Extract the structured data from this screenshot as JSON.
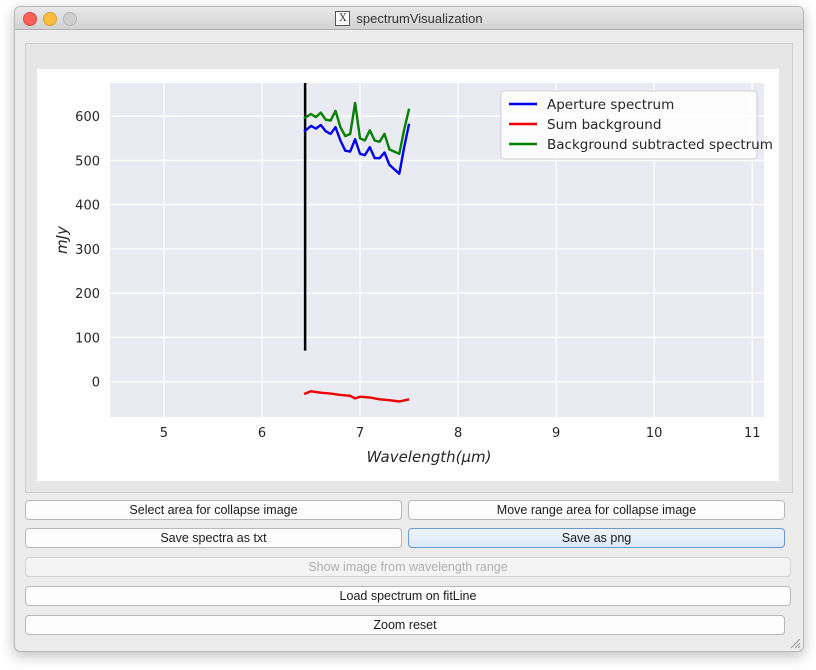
{
  "window": {
    "title": "spectrumVisualization"
  },
  "buttons": {
    "select_area": "Select area for collapse image",
    "move_range": "Move range area for collapse image",
    "save_txt": "Save spectra as txt",
    "save_png": "Save as png",
    "show_image": "Show image from wavelength range",
    "load_spectrum": "Load spectrum on fitLine",
    "zoom_reset": "Zoom reset"
  },
  "chart_data": {
    "type": "line",
    "xlabel": "Wavelength(μm)",
    "ylabel": "mJy",
    "xlim": [
      4.45,
      11.12
    ],
    "ylim": [
      -80,
      675
    ],
    "xticks": [
      5,
      6,
      7,
      8,
      9,
      10,
      11
    ],
    "yticks": [
      0,
      100,
      200,
      300,
      400,
      500,
      600
    ],
    "grid": true,
    "legend_position": "top-right",
    "vline": {
      "x": 6.44,
      "y_range": [
        70,
        675
      ],
      "color": "#000000"
    },
    "series": [
      {
        "name": "Aperture spectrum",
        "color": "#0000ee",
        "x": [
          6.43,
          6.5,
          6.55,
          6.6,
          6.65,
          6.7,
          6.75,
          6.8,
          6.85,
          6.9,
          6.95,
          7.0,
          7.05,
          7.1,
          7.15,
          7.2,
          7.25,
          7.3,
          7.35,
          7.4,
          7.45,
          7.5
        ],
        "y": [
          565,
          578,
          572,
          580,
          566,
          560,
          575,
          545,
          522,
          520,
          548,
          515,
          512,
          530,
          505,
          505,
          518,
          490,
          480,
          470,
          530,
          583
        ]
      },
      {
        "name": "Sum background",
        "color": "#ee0000",
        "x": [
          6.43,
          6.5,
          6.6,
          6.7,
          6.8,
          6.9,
          6.95,
          7.0,
          7.1,
          7.2,
          7.3,
          7.4,
          7.5
        ],
        "y": [
          -28,
          -22,
          -25,
          -27,
          -30,
          -32,
          -38,
          -34,
          -36,
          -40,
          -42,
          -45,
          -40
        ]
      },
      {
        "name": "Background subtracted spectrum",
        "color": "#008000",
        "x": [
          6.43,
          6.5,
          6.55,
          6.6,
          6.65,
          6.7,
          6.75,
          6.8,
          6.85,
          6.9,
          6.95,
          7.0,
          7.05,
          7.1,
          7.15,
          7.2,
          7.25,
          7.3,
          7.35,
          7.4,
          7.45,
          7.5
        ],
        "y": [
          595,
          605,
          598,
          608,
          592,
          590,
          612,
          575,
          555,
          560,
          630,
          550,
          545,
          568,
          545,
          542,
          560,
          525,
          520,
          515,
          570,
          617
        ]
      }
    ]
  }
}
